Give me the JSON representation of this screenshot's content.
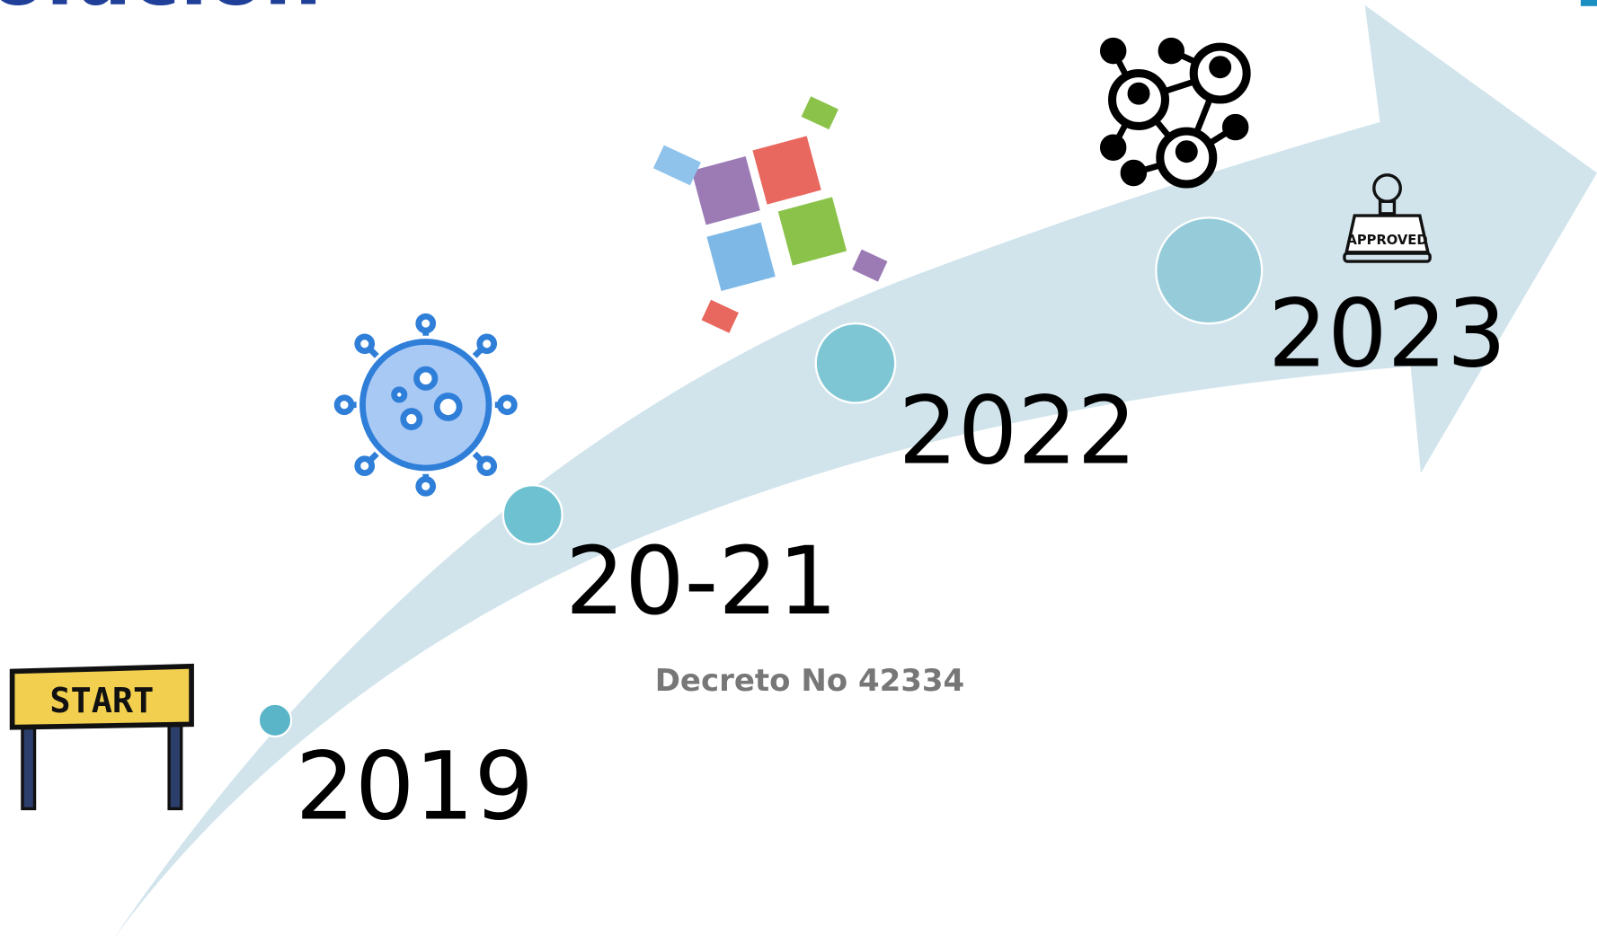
{
  "header": {
    "title": "olución"
  },
  "timeline": [
    {
      "label": "2019"
    },
    {
      "label": "20-21"
    },
    {
      "label": "2022"
    },
    {
      "label": "2023"
    }
  ],
  "note": "Decreto No 42334",
  "icons": {
    "start": "START",
    "approved": "APPROVED"
  }
}
